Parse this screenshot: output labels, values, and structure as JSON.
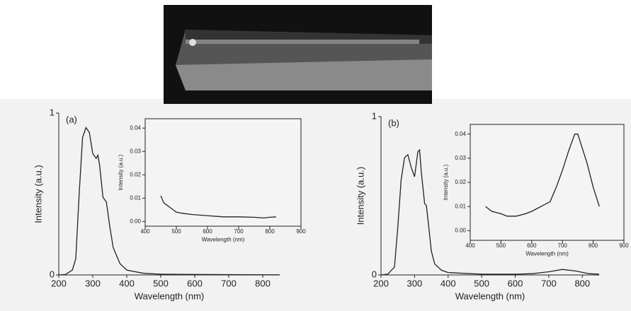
{
  "chart_data": [
    {
      "type": "line",
      "label": "(a)",
      "xlabel": "Wavelength (nm)",
      "ylabel": "Intensity (a.u.)",
      "x": [
        200,
        220,
        240,
        250,
        260,
        270,
        280,
        290,
        300,
        310,
        315,
        320,
        330,
        340,
        350,
        360,
        380,
        400,
        450,
        500,
        600,
        700,
        850
      ],
      "values": [
        0,
        0.003,
        0.03,
        0.1,
        0.5,
        0.85,
        0.91,
        0.88,
        0.75,
        0.72,
        0.74,
        0.68,
        0.48,
        0.45,
        0.3,
        0.17,
        0.07,
        0.03,
        0.01,
        0.005,
        0.003,
        0.002,
        0.001
      ],
      "color": "#222",
      "xlim": [
        200,
        850
      ],
      "ylim": [
        0,
        1
      ],
      "xticks": [
        200,
        300,
        400,
        500,
        600,
        700,
        800
      ],
      "yticks": [
        0,
        1
      ]
    },
    {
      "type": "line",
      "xlabel": "Wavelength (nm)",
      "ylabel": "Intensity (a.u.)",
      "x": [
        450,
        460,
        470,
        480,
        490,
        500,
        520,
        550,
        600,
        650,
        700,
        750,
        780,
        800,
        820
      ],
      "values": [
        0.011,
        0.008,
        0.007,
        0.006,
        0.005,
        0.004,
        0.0035,
        0.003,
        0.0025,
        0.002,
        0.002,
        0.0018,
        0.0015,
        0.0018,
        0.002
      ],
      "color": "#222",
      "xlim": [
        400,
        900
      ],
      "ylim": [
        -0.002,
        0.044
      ],
      "xticks": [
        400,
        500,
        600,
        700,
        800,
        900
      ],
      "yticks": [
        {
          "value": 0,
          "label": "0.00"
        },
        {
          "value": 0.01,
          "label": "0.01"
        },
        {
          "value": 0.02,
          "label": "0.02"
        },
        {
          "value": 0.03,
          "label": "0.03"
        },
        {
          "value": 0.04,
          "label": "0.04"
        }
      ]
    },
    {
      "type": "line",
      "label": "(b)",
      "xlabel": "Wavelength (nm)",
      "ylabel": "Intensity (a.u.)",
      "x": [
        200,
        220,
        240,
        250,
        260,
        270,
        280,
        290,
        300,
        310,
        315,
        320,
        330,
        335,
        340,
        350,
        360,
        380,
        400,
        450,
        500,
        600,
        650,
        700,
        740,
        780,
        820,
        850
      ],
      "values": [
        0,
        0.005,
        0.05,
        0.3,
        0.6,
        0.74,
        0.76,
        0.68,
        0.62,
        0.78,
        0.79,
        0.65,
        0.45,
        0.44,
        0.35,
        0.15,
        0.07,
        0.03,
        0.015,
        0.01,
        0.005,
        0.005,
        0.008,
        0.02,
        0.035,
        0.025,
        0.008,
        0.005
      ],
      "color": "#222",
      "xlim": [
        200,
        850
      ],
      "ylim": [
        0,
        1
      ],
      "xticks": [
        200,
        300,
        400,
        500,
        600,
        700,
        800
      ],
      "yticks": [
        0,
        1
      ]
    },
    {
      "type": "line",
      "xlabel": "Wavelength (nm)",
      "ylabel": "Intensity (a.u.)",
      "x": [
        450,
        470,
        500,
        520,
        550,
        580,
        600,
        630,
        660,
        680,
        700,
        720,
        740,
        750,
        760,
        780,
        800,
        820
      ],
      "values": [
        0.01,
        0.008,
        0.007,
        0.006,
        0.006,
        0.007,
        0.008,
        0.01,
        0.012,
        0.018,
        0.025,
        0.033,
        0.04,
        0.04,
        0.036,
        0.028,
        0.018,
        0.01
      ],
      "color": "#222",
      "xlim": [
        400,
        900
      ],
      "ylim": [
        -0.004,
        0.044
      ],
      "xticks": [
        400,
        500,
        600,
        700,
        800,
        900
      ],
      "yticks": [
        {
          "value": 0,
          "label": "0.00"
        },
        {
          "value": 0.01,
          "label": "0.01"
        },
        {
          "value": 0.02,
          "label": "0.02"
        },
        {
          "value": 0.03,
          "label": "0.03"
        },
        {
          "value": 0.04,
          "label": "0.04"
        }
      ]
    }
  ]
}
